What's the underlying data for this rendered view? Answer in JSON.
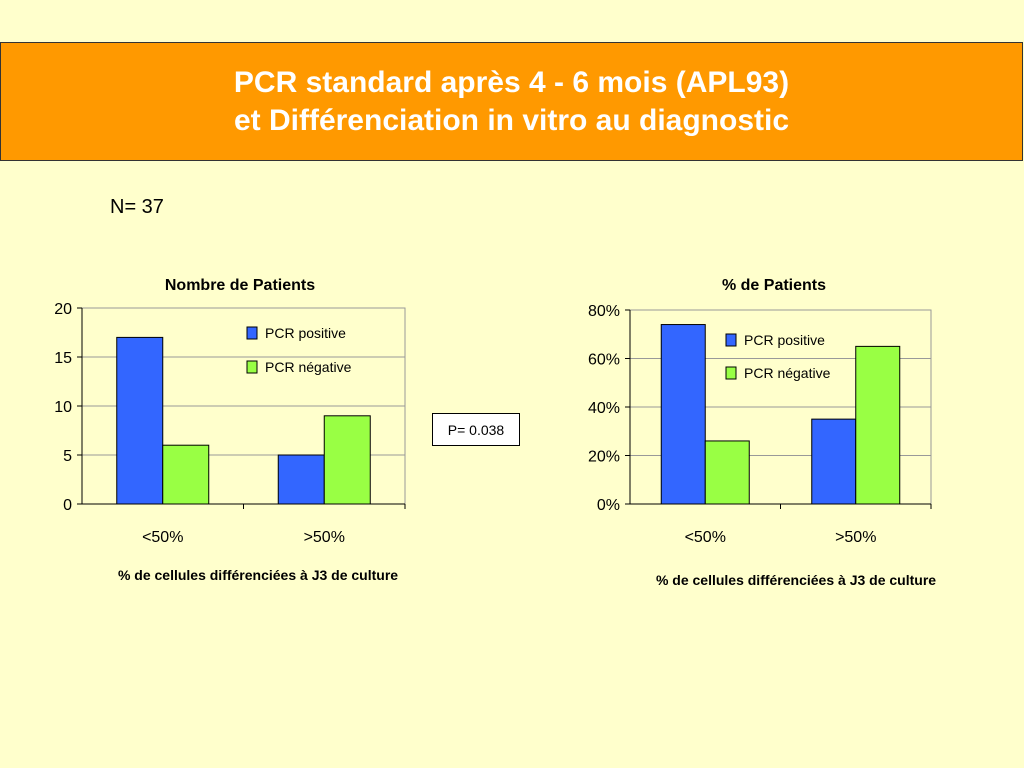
{
  "title": {
    "line1": "PCR standard après 4 - 6 mois (APL93)",
    "line2": "et Différenciation in vitro au diagnostic"
  },
  "n_label": "N= 37",
  "pvalue_label": "P= 0.038",
  "colors": {
    "positive": "#3366FF",
    "negative": "#99FF44",
    "header": "#FF9900",
    "background": "#FFFFCC"
  },
  "chart_data": [
    {
      "type": "bar",
      "title": "Nombre de Patients",
      "categories": [
        "<50%",
        ">50%"
      ],
      "series": [
        {
          "name": "PCR positive",
          "values": [
            17,
            5
          ]
        },
        {
          "name": "PCR négative",
          "values": [
            6,
            9
          ]
        }
      ],
      "ylim": [
        0,
        20
      ],
      "yticks": [
        0,
        5,
        10,
        15,
        20
      ],
      "ytick_labels": [
        "0",
        "5",
        "10",
        "15",
        "20"
      ],
      "xlabel": "% de cellules différenciées à J3 de culture",
      "grid": true,
      "legend": "top-right"
    },
    {
      "type": "bar",
      "title": "% de Patients",
      "categories": [
        "<50%",
        ">50%"
      ],
      "series": [
        {
          "name": "PCR positive",
          "values": [
            74,
            35
          ]
        },
        {
          "name": "PCR négative",
          "values": [
            26,
            65
          ]
        }
      ],
      "ylim": [
        0,
        80
      ],
      "yticks": [
        0,
        20,
        40,
        60,
        80
      ],
      "ytick_labels": [
        "0%",
        "20%",
        "40%",
        "60%",
        "80%"
      ],
      "xlabel": "% de cellules différenciées à J3 de culture",
      "grid": true,
      "legend": "top-right"
    }
  ]
}
